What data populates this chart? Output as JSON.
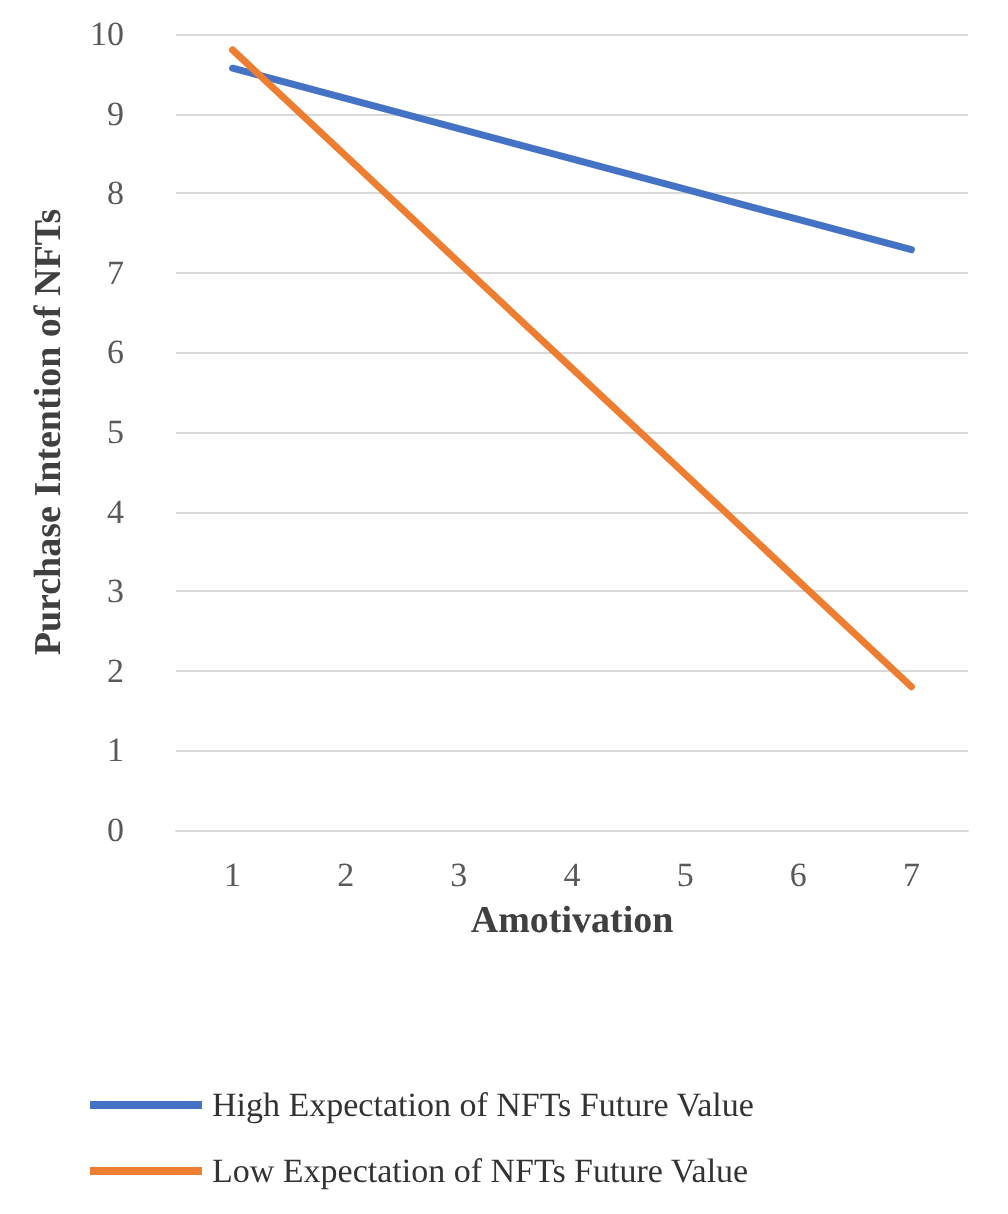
{
  "chart_data": {
    "type": "line",
    "xlabel": "Amotivation",
    "ylabel": "Purchase Intention of NFTs",
    "categories": [
      "1",
      "2",
      "3",
      "4",
      "5",
      "6",
      "7"
    ],
    "series": [
      {
        "name": "High Expectation of NFTs Future Value",
        "color": "#4472c4",
        "values": [
          9.57,
          9.19,
          8.81,
          8.43,
          8.05,
          7.67,
          7.29
        ]
      },
      {
        "name": "Low Expectation of NFTs Future Value",
        "color": "#ed7d31",
        "values": [
          9.8,
          8.47,
          7.13,
          5.8,
          4.47,
          3.13,
          1.8
        ]
      }
    ],
    "ylim": [
      0,
      10
    ],
    "yticks": [
      0,
      1,
      2,
      3,
      4,
      5,
      6,
      7,
      8,
      9,
      10
    ],
    "grid": "y",
    "legend": "bottom",
    "marker": "none",
    "line_style": "solid"
  }
}
